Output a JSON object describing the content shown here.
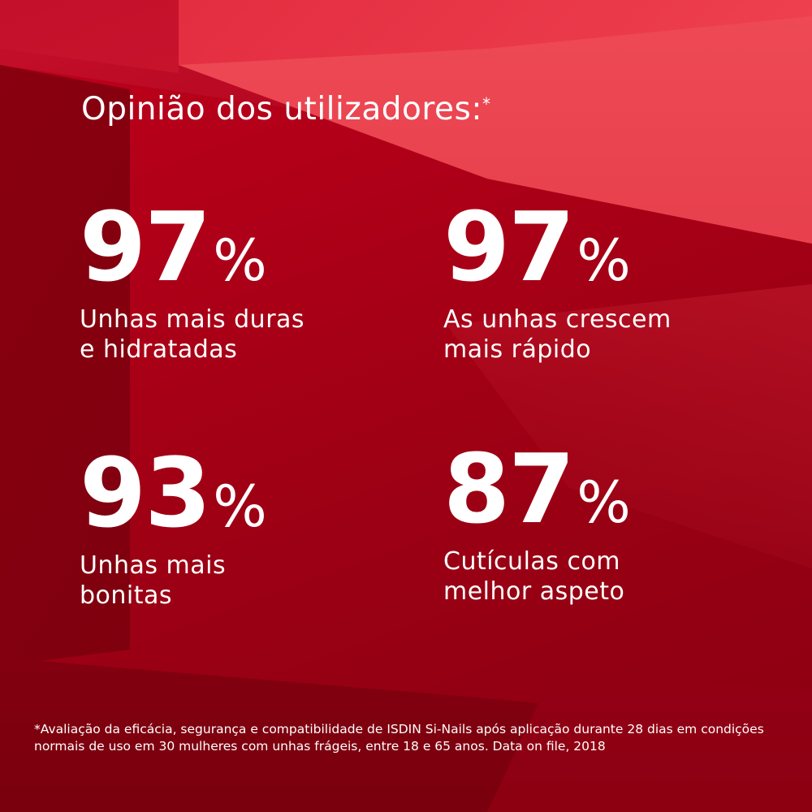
{
  "title": "Opinião dos utilizadores:",
  "title_mark": "*",
  "stats": [
    {
      "value": "97",
      "unit": "%",
      "label_line1": "Unhas mais duras",
      "label_line2": "e hidratadas"
    },
    {
      "value": "97",
      "unit": "%",
      "label_line1": "As unhas crescem",
      "label_line2": "mais rápido"
    },
    {
      "value": "93",
      "unit": "%",
      "label_line1": "Unhas mais",
      "label_line2": "bonitas"
    },
    {
      "value": "87",
      "unit": "%",
      "label_line1": "Cutículas com",
      "label_line2": "melhor aspeto"
    }
  ],
  "footnote": "*Avaliação da eficácia, segurança e compatibilidade de ISDIN Si-Nails após aplicação durante 28 dias em condições normais de uso em 30 mulheres com unhas frágeis, entre 18 e 65 anos. Data on file, 2018",
  "colors": {
    "background": "#a3001a",
    "highlight": "#f04452",
    "text": "#ffffff"
  }
}
